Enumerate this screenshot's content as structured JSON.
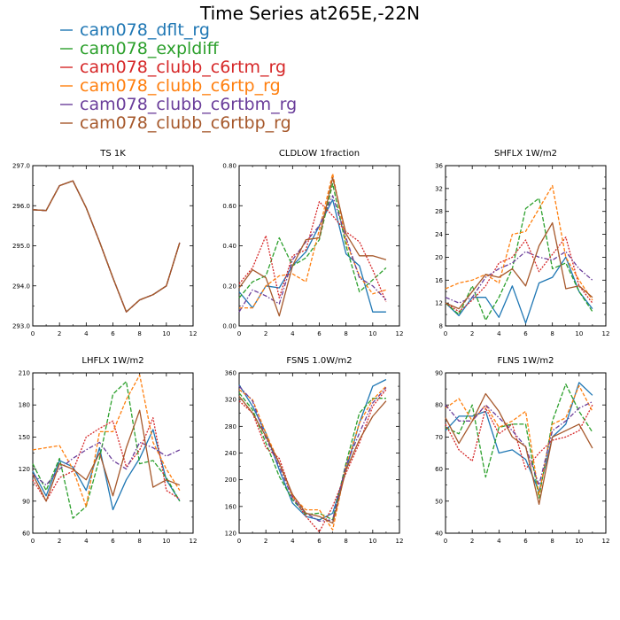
{
  "figure_title": "Time Series at265E,-22N",
  "legend": [
    {
      "label": "cam078_dflt_rg",
      "color": "#1f77b4"
    },
    {
      "label": "cam078_expldiff",
      "color": "#2ca02c"
    },
    {
      "label": "cam078_clubb_c6rtm_rg",
      "color": "#d62728"
    },
    {
      "label": "cam078_clubb_c6rtp_rg",
      "color": "#ff7f0e"
    },
    {
      "label": "cam078_clubb_c6rtbm_rg",
      "color": "#6a3d9a"
    },
    {
      "label": "cam078_clubb_c6rtbp_rg",
      "color": "#a6582b"
    }
  ],
  "chart_data": [
    {
      "type": "line",
      "title": "TS   1K",
      "xlim": [
        0,
        12
      ],
      "ylim": [
        293.0,
        297.0
      ],
      "xticks": [
        0,
        2,
        4,
        6,
        8,
        10,
        12
      ],
      "yticks": [
        293.0,
        294.0,
        295.0,
        296.0,
        297.0
      ],
      "ytick_labels": [
        "293.0",
        "294.0",
        "295.0",
        "296.0",
        "297.0"
      ],
      "x": [
        0,
        1,
        2,
        3,
        4,
        5,
        6,
        7,
        8,
        9,
        10,
        11
      ],
      "series": [
        {
          "name": "cam078_dflt_rg",
          "values": [
            295.9,
            295.88,
            296.5,
            296.62,
            295.95,
            295.1,
            294.2,
            293.35,
            293.65,
            293.78,
            294.0,
            295.08
          ]
        },
        {
          "name": "cam078_expldiff",
          "values": [
            295.9,
            295.88,
            296.5,
            296.62,
            295.95,
            295.1,
            294.2,
            293.35,
            293.65,
            293.78,
            294.0,
            295.08
          ]
        },
        {
          "name": "cam078_clubb_c6rtm_rg",
          "values": [
            295.9,
            295.88,
            296.5,
            296.62,
            295.95,
            295.1,
            294.2,
            293.35,
            293.65,
            293.78,
            294.0,
            295.08
          ]
        },
        {
          "name": "cam078_clubb_c6rtp_rg",
          "values": [
            295.9,
            295.88,
            296.5,
            296.62,
            295.95,
            295.1,
            294.2,
            293.35,
            293.65,
            293.78,
            294.0,
            295.08
          ]
        },
        {
          "name": "cam078_clubb_c6rtbm_rg",
          "values": [
            295.9,
            295.88,
            296.5,
            296.62,
            295.95,
            295.1,
            294.2,
            293.35,
            293.65,
            293.78,
            294.0,
            295.08
          ]
        },
        {
          "name": "cam078_clubb_c6rtbp_rg",
          "values": [
            295.9,
            295.88,
            296.5,
            296.62,
            295.95,
            295.1,
            294.2,
            293.35,
            293.65,
            293.78,
            294.0,
            295.08
          ]
        }
      ]
    },
    {
      "type": "line",
      "title": "CLDLOW   1fraction",
      "xlim": [
        0,
        12
      ],
      "ylim": [
        0.0,
        0.8
      ],
      "xticks": [
        0,
        2,
        4,
        6,
        8,
        10,
        12
      ],
      "yticks": [
        0.0,
        0.2,
        0.4,
        0.6,
        0.8
      ],
      "ytick_labels": [
        "0.00",
        "0.20",
        "0.40",
        "0.60",
        "0.80"
      ],
      "x": [
        0,
        1,
        2,
        3,
        4,
        5,
        6,
        7,
        8,
        9,
        10,
        11
      ],
      "series": [
        {
          "name": "cam078_dflt_rg",
          "values": [
            0.17,
            0.09,
            0.2,
            0.19,
            0.3,
            0.37,
            0.5,
            0.63,
            0.36,
            0.3,
            0.07,
            0.07
          ]
        },
        {
          "name": "cam078_expldiff",
          "values": [
            0.14,
            0.22,
            0.25,
            0.44,
            0.3,
            0.34,
            0.43,
            0.71,
            0.4,
            0.17,
            0.23,
            0.29
          ]
        },
        {
          "name": "cam078_clubb_c6rtm_rg",
          "values": [
            0.21,
            0.29,
            0.45,
            0.14,
            0.35,
            0.38,
            0.62,
            0.55,
            0.47,
            0.42,
            0.28,
            0.12
          ]
        },
        {
          "name": "cam078_clubb_c6rtp_rg",
          "values": [
            0.09,
            0.09,
            0.2,
            0.25,
            0.26,
            0.22,
            0.48,
            0.76,
            0.42,
            0.25,
            0.16,
            0.18
          ]
        },
        {
          "name": "cam078_clubb_c6rtbm_rg",
          "values": [
            0.07,
            0.18,
            0.15,
            0.11,
            0.33,
            0.42,
            0.5,
            0.65,
            0.44,
            0.24,
            0.2,
            0.13
          ]
        },
        {
          "name": "cam078_clubb_c6rtbp_rg",
          "values": [
            0.19,
            0.28,
            0.24,
            0.05,
            0.3,
            0.43,
            0.44,
            0.74,
            0.46,
            0.35,
            0.35,
            0.33
          ]
        }
      ]
    },
    {
      "type": "line",
      "title": "SHFLX   1W/m2",
      "xlim": [
        0,
        12
      ],
      "ylim": [
        8,
        36
      ],
      "xticks": [
        0,
        2,
        4,
        6,
        8,
        10,
        12
      ],
      "yticks": [
        8,
        12,
        16,
        20,
        24,
        28,
        32,
        36
      ],
      "ytick_labels": [
        "8",
        "12",
        "16",
        "20",
        "24",
        "28",
        "32",
        "36"
      ],
      "x": [
        0,
        1,
        2,
        3,
        4,
        5,
        6,
        7,
        8,
        9,
        10,
        11
      ],
      "series": [
        {
          "name": "cam078_dflt_rg",
          "values": [
            12.0,
            9.8,
            13.0,
            13.0,
            9.5,
            15.0,
            8.5,
            15.5,
            16.5,
            20.0,
            14.0,
            11.0
          ]
        },
        {
          "name": "cam078_expldiff",
          "values": [
            12.0,
            10.0,
            15.0,
            9.0,
            13.0,
            18.0,
            28.5,
            30.3,
            18.0,
            19.0,
            14.0,
            10.5
          ]
        },
        {
          "name": "cam078_clubb_c6rtm_rg",
          "values": [
            12.0,
            10.5,
            12.5,
            15.0,
            19.0,
            20.0,
            23.0,
            17.5,
            20.5,
            23.5,
            15.0,
            12.0
          ]
        },
        {
          "name": "cam078_clubb_c6rtp_rg",
          "values": [
            14.5,
            15.5,
            16.0,
            17.0,
            15.5,
            24.0,
            24.5,
            28.5,
            32.5,
            20.0,
            16.0,
            12.5
          ]
        },
        {
          "name": "cam078_clubb_c6rtbm_rg",
          "values": [
            13.0,
            12.0,
            13.0,
            16.5,
            18.0,
            19.0,
            21.0,
            20.0,
            19.5,
            21.0,
            18.0,
            16.0
          ]
        },
        {
          "name": "cam078_clubb_c6rtbp_rg",
          "values": [
            12.0,
            11.0,
            14.0,
            17.0,
            16.5,
            18.0,
            15.0,
            22.0,
            26.0,
            14.5,
            15.0,
            13.0
          ]
        }
      ]
    },
    {
      "type": "line",
      "title": "LHFLX   1W/m2",
      "xlim": [
        0,
        12
      ],
      "ylim": [
        60,
        210
      ],
      "xticks": [
        0,
        2,
        4,
        6,
        8,
        10,
        12
      ],
      "yticks": [
        60,
        90,
        120,
        150,
        180,
        210
      ],
      "ytick_labels": [
        "60",
        "90",
        "120",
        "150",
        "180",
        "210"
      ],
      "x": [
        0,
        1,
        2,
        3,
        4,
        5,
        6,
        7,
        8,
        9,
        10,
        11
      ],
      "series": [
        {
          "name": "cam078_dflt_rg",
          "values": [
            118,
            95,
            128,
            122,
            100,
            140,
            82,
            110,
            130,
            157,
            110,
            90
          ]
        },
        {
          "name": "cam078_expldiff",
          "values": [
            125,
            100,
            130,
            74,
            85,
            130,
            190,
            202,
            125,
            128,
            112,
            90
          ]
        },
        {
          "name": "cam078_clubb_c6rtm_rg",
          "values": [
            110,
            90,
            112,
            118,
            150,
            158,
            165,
            122,
            138,
            168,
            100,
            92
          ]
        },
        {
          "name": "cam078_clubb_c6rtp_rg",
          "values": [
            138,
            140,
            142,
            120,
            85,
            155,
            155,
            185,
            208,
            145,
            120,
            100
          ]
        },
        {
          "name": "cam078_clubb_c6rtbm_rg",
          "values": [
            115,
            105,
            120,
            130,
            138,
            145,
            128,
            120,
            145,
            140,
            132,
            138
          ]
        },
        {
          "name": "cam078_clubb_c6rtbp_rg",
          "values": [
            115,
            90,
            125,
            120,
            110,
            135,
            95,
            140,
            175,
            103,
            110,
            105
          ]
        }
      ]
    },
    {
      "type": "line",
      "title": "FSNS   1.0W/m2",
      "xlim": [
        0,
        12
      ],
      "ylim": [
        120,
        360
      ],
      "xticks": [
        0,
        2,
        4,
        6,
        8,
        10,
        12
      ],
      "yticks": [
        120,
        160,
        200,
        240,
        280,
        320,
        360
      ],
      "ytick_labels": [
        "120",
        "160",
        "200",
        "240",
        "280",
        "320",
        "360"
      ],
      "x": [
        0,
        1,
        2,
        3,
        4,
        5,
        6,
        7,
        8,
        9,
        10,
        11
      ],
      "series": [
        {
          "name": "cam078_dflt_rg",
          "values": [
            342,
            310,
            270,
            215,
            165,
            145,
            140,
            150,
            215,
            285,
            340,
            350
          ]
        },
        {
          "name": "cam078_expldiff",
          "values": [
            330,
            305,
            255,
            205,
            170,
            148,
            150,
            140,
            225,
            300,
            322,
            322
          ]
        },
        {
          "name": "cam078_clubb_c6rtm_rg",
          "values": [
            318,
            300,
            248,
            232,
            175,
            145,
            122,
            160,
            210,
            255,
            310,
            335
          ]
        },
        {
          "name": "cam078_clubb_c6rtp_rg",
          "values": [
            335,
            320,
            270,
            225,
            175,
            155,
            155,
            125,
            220,
            285,
            320,
            340
          ]
        },
        {
          "name": "cam078_clubb_c6rtbm_rg",
          "values": [
            340,
            318,
            262,
            220,
            172,
            150,
            138,
            140,
            222,
            270,
            315,
            338
          ]
        },
        {
          "name": "cam078_clubb_c6rtbp_rg",
          "values": [
            325,
            300,
            265,
            225,
            178,
            150,
            145,
            135,
            215,
            260,
            295,
            318
          ]
        }
      ]
    },
    {
      "type": "line",
      "title": "FLNS   1W/m2",
      "xlim": [
        0,
        12
      ],
      "ylim": [
        40,
        90
      ],
      "xticks": [
        0,
        2,
        4,
        6,
        8,
        10,
        12
      ],
      "yticks": [
        40,
        50,
        60,
        70,
        80,
        90
      ],
      "ytick_labels": [
        "40",
        "50",
        "60",
        "70",
        "80",
        "90"
      ],
      "x": [
        0,
        1,
        2,
        3,
        4,
        5,
        6,
        7,
        8,
        9,
        10,
        11
      ],
      "series": [
        {
          "name": "cam078_dflt_rg",
          "values": [
            72,
            76.5,
            76.5,
            78,
            65,
            66,
            63,
            53,
            70,
            74,
            87,
            83
          ]
        },
        {
          "name": "cam078_expldiff",
          "values": [
            73,
            71,
            80,
            57.5,
            73,
            74,
            74,
            51,
            75,
            86.5,
            78,
            71.5
          ]
        },
        {
          "name": "cam078_clubb_c6rtm_rg",
          "values": [
            74,
            66,
            62.5,
            79,
            71,
            74,
            60,
            65,
            69,
            70,
            72,
            80
          ]
        },
        {
          "name": "cam078_clubb_c6rtp_rg",
          "values": [
            79,
            82,
            75,
            80,
            73,
            75,
            78,
            52,
            74,
            76,
            86,
            78
          ]
        },
        {
          "name": "cam078_clubb_c6rtbm_rg",
          "values": [
            80,
            75,
            75,
            80,
            76,
            72,
            67,
            55,
            72,
            75,
            79,
            81
          ]
        },
        {
          "name": "cam078_clubb_c6rtbp_rg",
          "values": [
            76,
            68,
            75,
            83.5,
            78,
            70,
            67,
            49,
            70,
            72,
            74,
            66.5
          ]
        }
      ]
    }
  ]
}
